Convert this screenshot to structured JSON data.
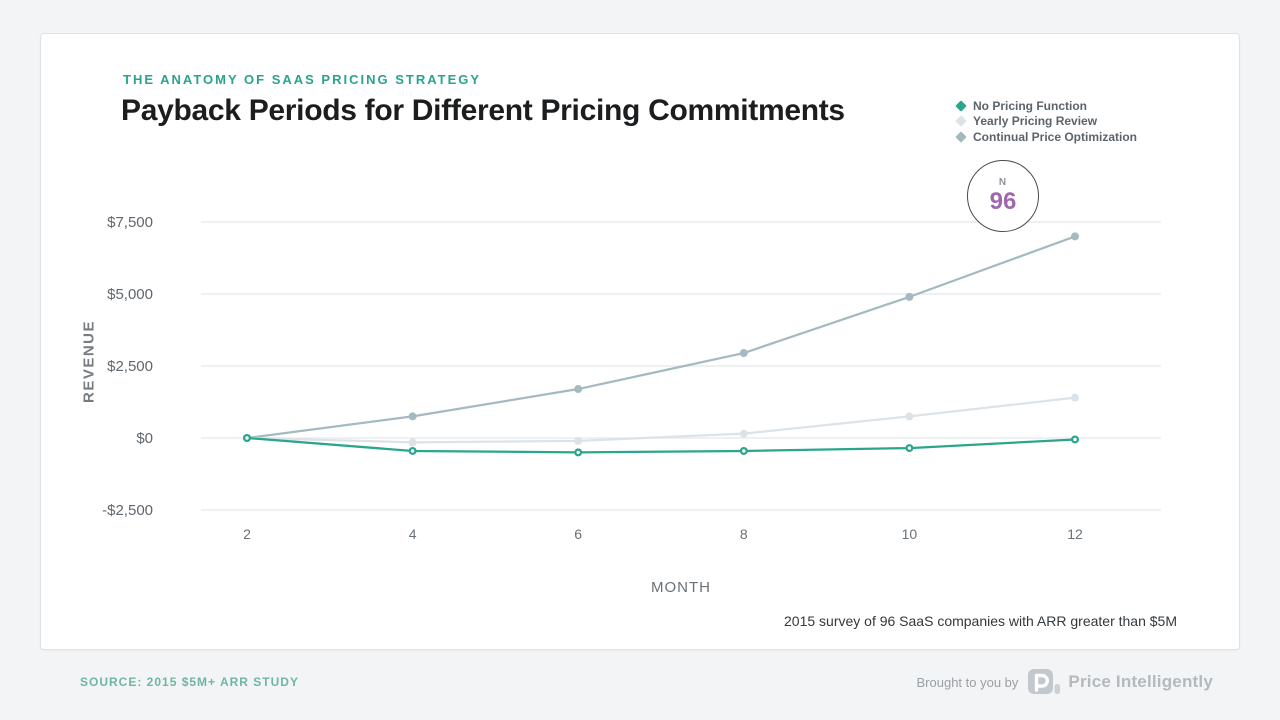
{
  "header": {
    "eyebrow": "THE ANATOMY OF SAAS PRICING STRATEGY",
    "title": "Payback Periods for Different Pricing Commitments"
  },
  "legend": {
    "items": [
      {
        "label": "No Pricing Function",
        "color": "#2BA58C"
      },
      {
        "label": "Yearly Pricing Review",
        "color": "#DCE3E8"
      },
      {
        "label": "Continual Price Optimization",
        "color": "#A5B9C1"
      }
    ]
  },
  "badge": {
    "label": "N",
    "value": "96",
    "value_color": "#A066AE"
  },
  "chart_data": {
    "type": "line",
    "title": "Payback Periods for Different Pricing Commitments",
    "xlabel": "MONTH",
    "ylabel": "REVENUE",
    "x": [
      2,
      4,
      6,
      8,
      10,
      12
    ],
    "xtick_labels": [
      "2",
      "4",
      "6",
      "8",
      "10",
      "12"
    ],
    "yticks": [
      7500,
      5000,
      2500,
      0,
      -2500
    ],
    "ytick_labels": [
      "$7,500",
      "$5,000",
      "$2,500",
      "$0",
      "-$2,500"
    ],
    "ylim": [
      -2500,
      7500
    ],
    "grid": true,
    "legend_position": "top-right",
    "series": [
      {
        "name": "No Pricing Function",
        "color": "#2BA58C",
        "marker": "ring",
        "values": [
          0,
          -450,
          -500,
          -450,
          -350,
          -50
        ]
      },
      {
        "name": "Yearly Pricing Review",
        "color": "#DCE3E8",
        "marker": "dot",
        "values": [
          0,
          -150,
          -100,
          150,
          750,
          1400
        ]
      },
      {
        "name": "Continual Price Optimization",
        "color": "#A5B9C1",
        "marker": "dot",
        "values": [
          0,
          750,
          1700,
          2950,
          4900,
          7000
        ]
      }
    ],
    "annotation": {
      "label": "N",
      "value": "96"
    }
  },
  "note": "2015 survey of 96 SaaS companies with ARR greater than $5M",
  "footer": {
    "source": "SOURCE: 2015 $5M+ ARR STUDY",
    "brought_by": "Brought to you by",
    "brand": "Price Intelligently"
  },
  "colors": {
    "accent_teal": "#2AA38E",
    "background": "#F2F4F5",
    "card": "#FFFFFF",
    "gridline": "#E9EBED"
  }
}
